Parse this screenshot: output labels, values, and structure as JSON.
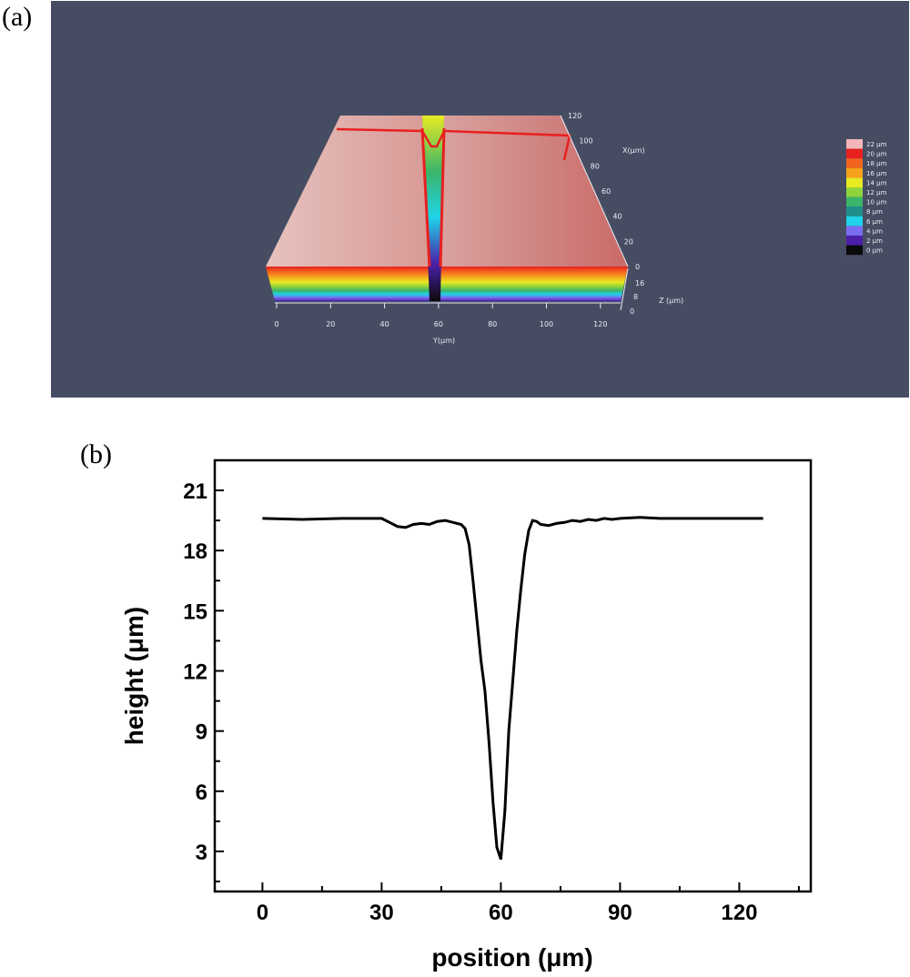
{
  "panel_labels": {
    "a": "(a)",
    "b": "(b)"
  },
  "panel_a": {
    "background": "#464d63",
    "x_axis_label": "X(μm)",
    "y_axis_label": "Y(μm)",
    "z_axis_label": "Z (μm)",
    "y_ticks": [
      "0",
      "20",
      "40",
      "60",
      "80",
      "100",
      "120"
    ],
    "x_ticks": [
      "0",
      "20",
      "40",
      "60",
      "80",
      "100",
      "120"
    ],
    "z_ticks": [
      "0",
      "8",
      "16"
    ],
    "legend": [
      {
        "label": "22 μm",
        "color": "#f4b6b8"
      },
      {
        "label": "20 μm",
        "color": "#e8201f"
      },
      {
        "label": "18 μm",
        "color": "#f3651f"
      },
      {
        "label": "16 μm",
        "color": "#f6a21b"
      },
      {
        "label": "14 μm",
        "color": "#e8ea22"
      },
      {
        "label": "12 μm",
        "color": "#8fd43b"
      },
      {
        "label": "10 μm",
        "color": "#3bb56a"
      },
      {
        "label": "8 μm",
        "color": "#1f8f8a"
      },
      {
        "label": "6 μm",
        "color": "#1fd3e8"
      },
      {
        "label": "4 μm",
        "color": "#7a6cf0"
      },
      {
        "label": "2 μm",
        "color": "#4b1fa8"
      },
      {
        "label": "0 μm",
        "color": "#0a0a0a"
      }
    ]
  },
  "chart_data": {
    "type": "line",
    "title": "",
    "xlabel": "position (μm)",
    "ylabel": "height (μm)",
    "xlim": [
      -12,
      138
    ],
    "ylim": [
      1,
      22.5
    ],
    "xticks": [
      0,
      30,
      60,
      90,
      120
    ],
    "yticks": [
      3,
      6,
      9,
      12,
      15,
      18,
      21
    ],
    "grid": false,
    "line_color": "#000000",
    "series": [
      {
        "x": [
          0,
          10,
          20,
          30,
          32,
          34,
          36,
          38,
          40,
          42,
          44,
          46,
          48,
          50,
          51,
          52,
          53,
          54,
          55,
          56,
          57,
          58,
          59,
          60,
          61,
          62,
          63,
          64,
          65,
          66,
          67,
          68,
          69,
          70,
          72,
          74,
          76,
          78,
          80,
          82,
          84,
          86,
          88,
          90,
          95,
          100,
          110,
          120,
          126
        ],
        "y": [
          19.6,
          19.55,
          19.6,
          19.6,
          19.4,
          19.2,
          19.15,
          19.3,
          19.35,
          19.3,
          19.45,
          19.5,
          19.4,
          19.3,
          19.1,
          18.3,
          16.5,
          14.5,
          12.5,
          11.0,
          8.5,
          5.5,
          3.2,
          2.6,
          5.0,
          9.0,
          11.5,
          14.0,
          16.0,
          17.8,
          19.0,
          19.5,
          19.45,
          19.3,
          19.25,
          19.35,
          19.4,
          19.5,
          19.45,
          19.55,
          19.5,
          19.6,
          19.55,
          19.6,
          19.65,
          19.6,
          19.6,
          19.6,
          19.6
        ]
      }
    ]
  }
}
